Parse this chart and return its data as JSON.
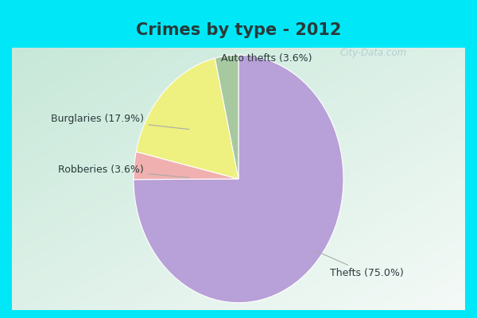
{
  "title": "Crimes by type - 2012",
  "title_fontsize": 15,
  "title_fontweight": "bold",
  "title_color": "#2a3a3a",
  "slices": [
    {
      "label": "Thefts",
      "pct": 75.0,
      "color": "#b8a0d8"
    },
    {
      "label": "Auto thefts",
      "pct": 3.6,
      "color": "#f0b0b0"
    },
    {
      "label": "Burglaries",
      "pct": 17.9,
      "color": "#eef080"
    },
    {
      "label": "Robberies",
      "pct": 3.6,
      "color": "#a8c8a0"
    }
  ],
  "background_cyan": "#00e8f8",
  "background_main_tl": "#c8e8d8",
  "background_main_br": "#e8f4f0",
  "watermark": "City-Data.com",
  "label_fontsize": 9,
  "startangle": 90,
  "border_width": 10
}
